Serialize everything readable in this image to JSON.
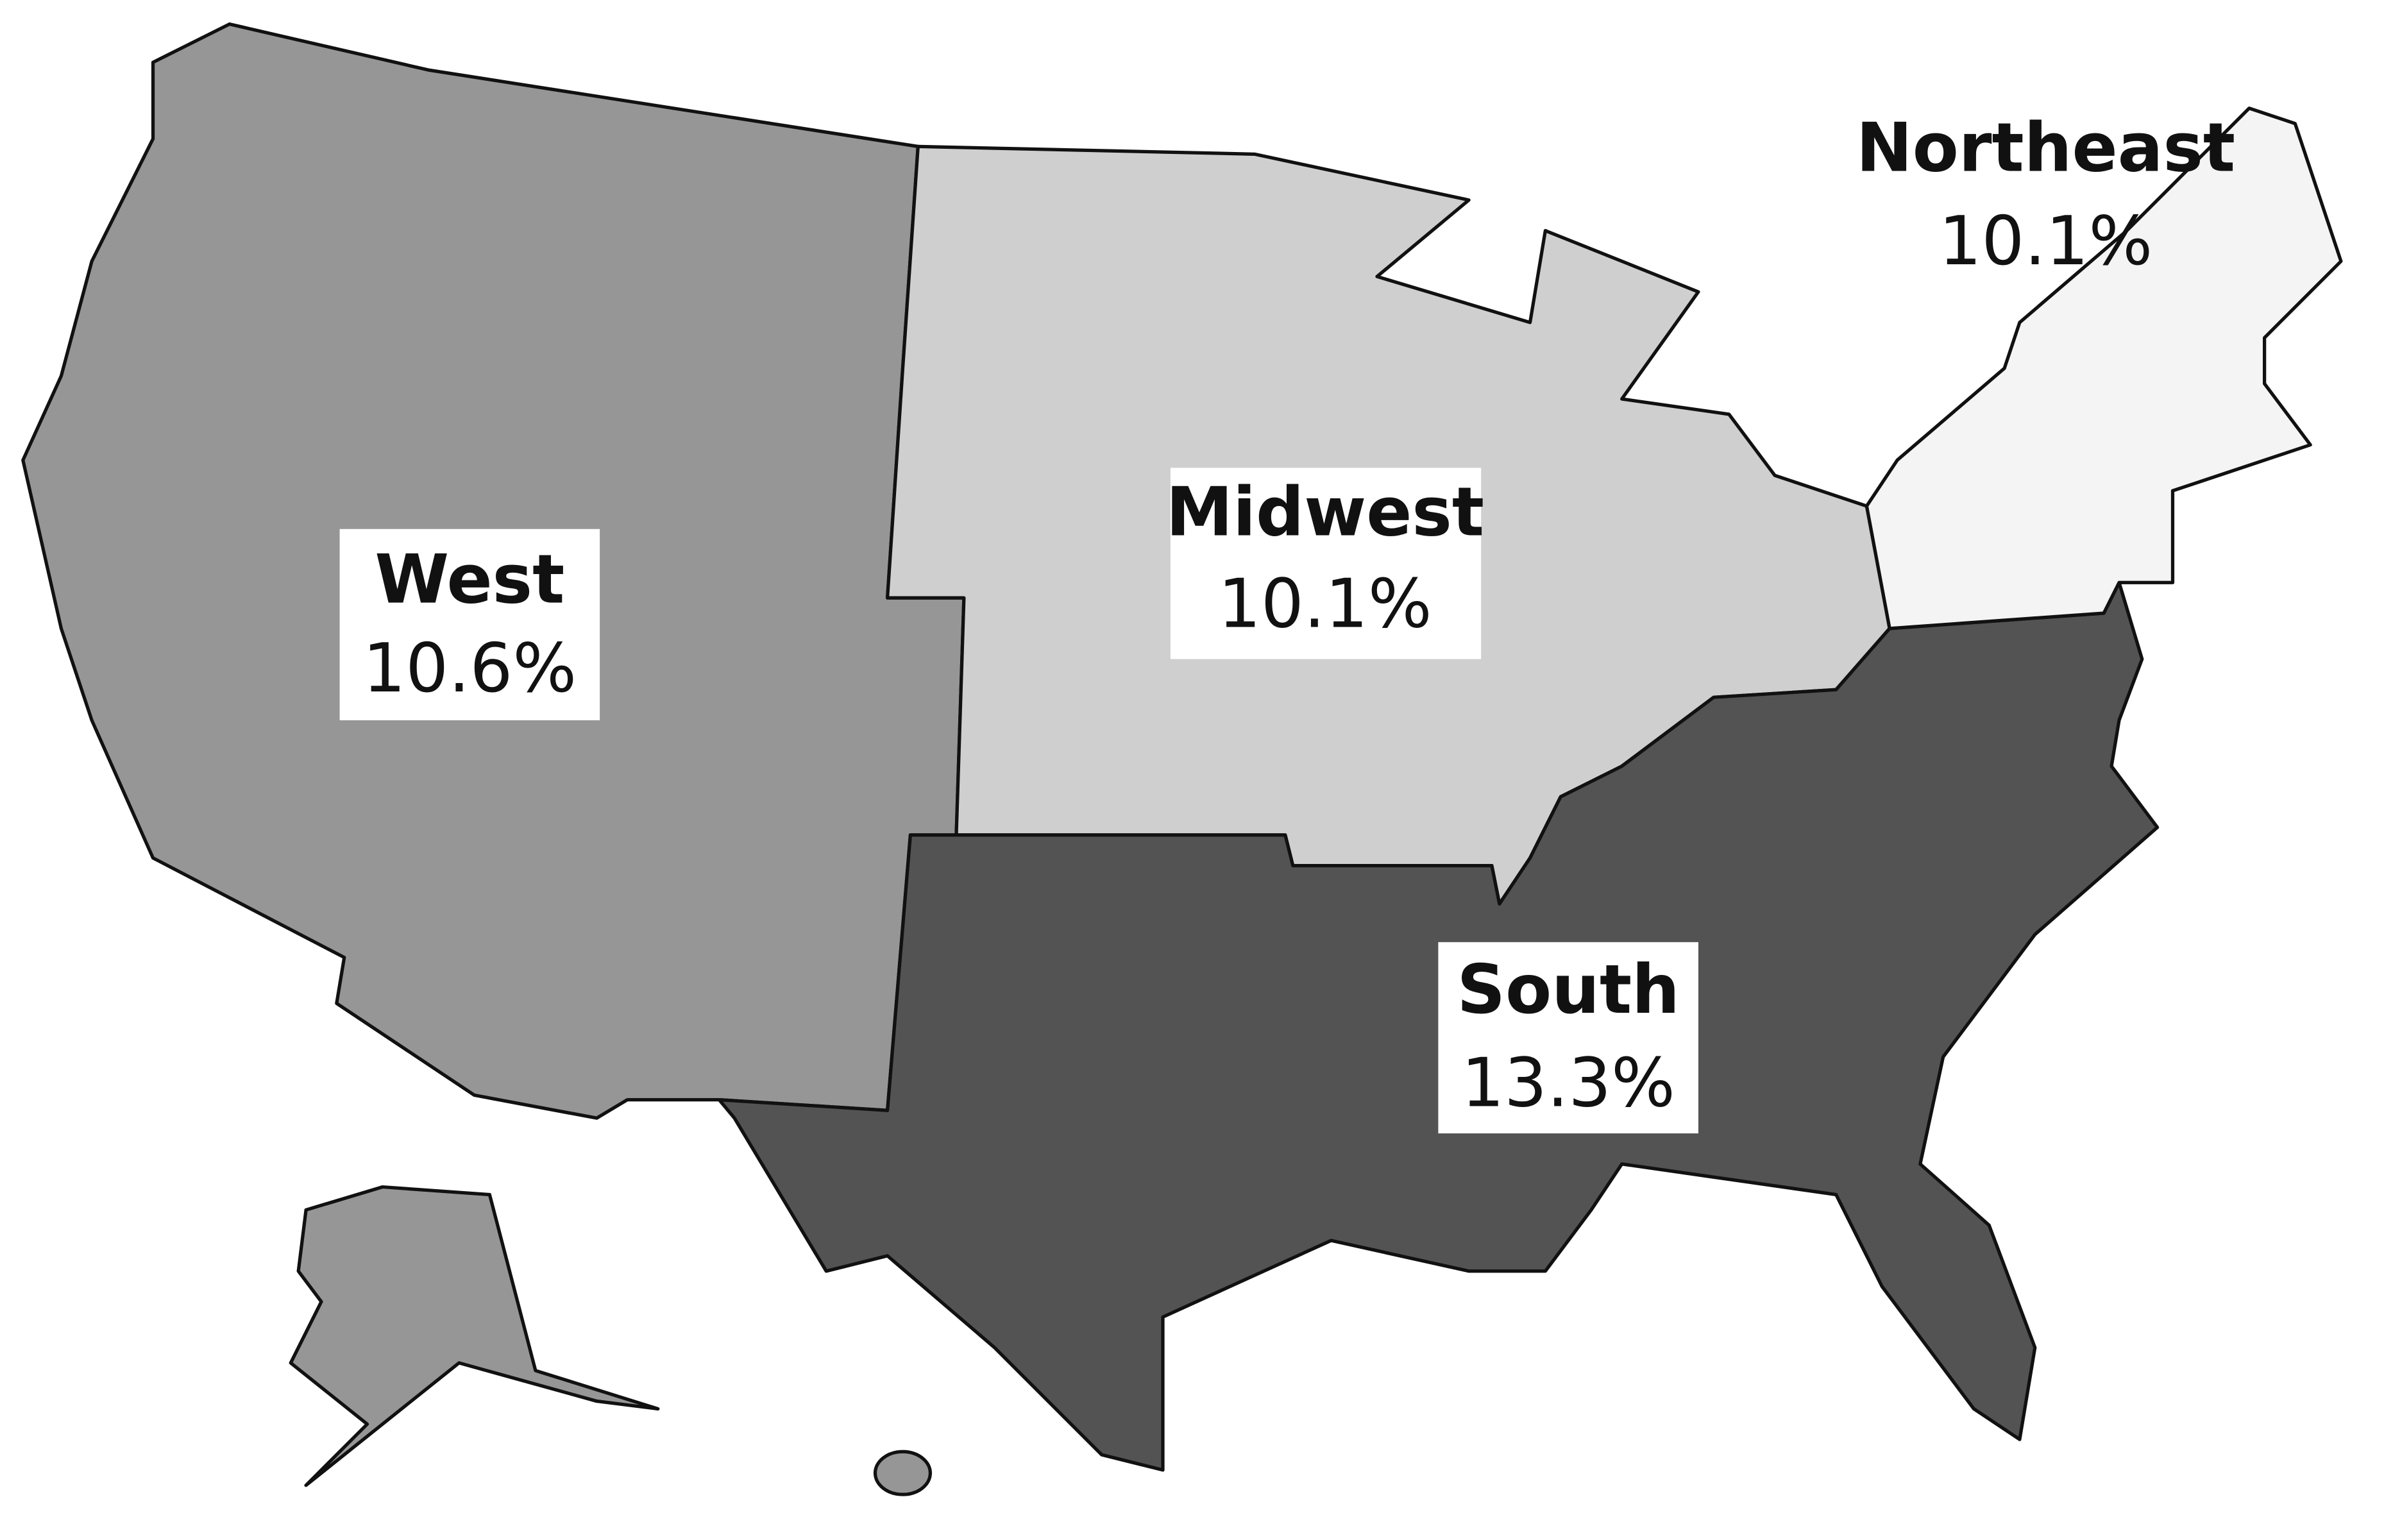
{
  "map": {
    "regions": [
      {
        "name": "West",
        "rate": "10.6%",
        "color": "#969696"
      },
      {
        "name": "Midwest",
        "rate": "10.1%",
        "color": "#cfcfcf"
      },
      {
        "name": "South",
        "rate": "13.3%",
        "color": "#535353"
      },
      {
        "name": "Northeast",
        "rate": "10.1%",
        "color": "#f4f4f4"
      }
    ]
  }
}
